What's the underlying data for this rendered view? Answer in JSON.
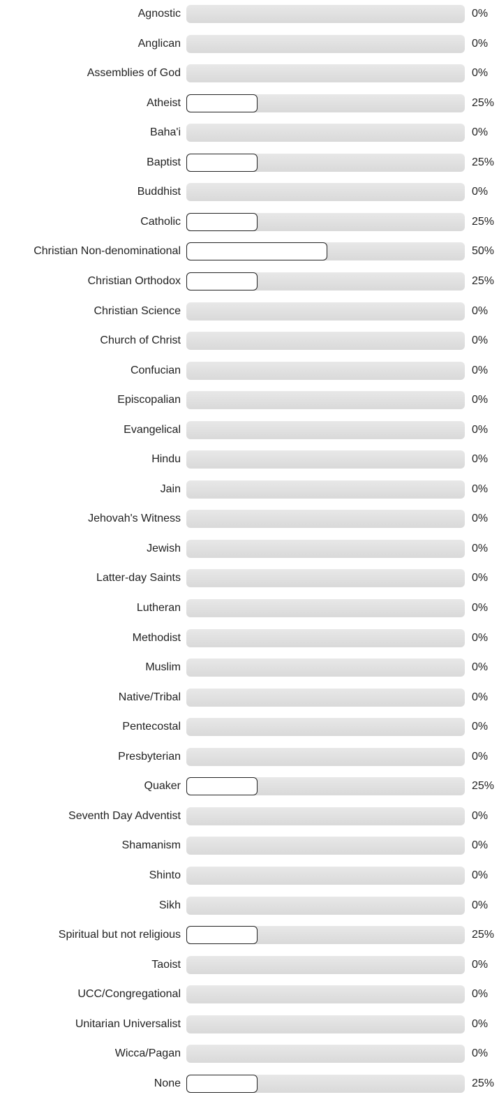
{
  "chart_data": {
    "type": "bar",
    "orientation": "horizontal",
    "value_format": "percent",
    "xlim": [
      0,
      100
    ],
    "categories": [
      "Agnostic",
      "Anglican",
      "Assemblies of God",
      "Atheist",
      "Baha'i",
      "Baptist",
      "Buddhist",
      "Catholic",
      "Christian Non-denominational",
      "Christian Orthodox",
      "Christian Science",
      "Church of Christ",
      "Confucian",
      "Episcopalian",
      "Evangelical",
      "Hindu",
      "Jain",
      "Jehovah's Witness",
      "Jewish",
      "Latter-day Saints",
      "Lutheran",
      "Methodist",
      "Muslim",
      "Native/Tribal",
      "Pentecostal",
      "Presbyterian",
      "Quaker",
      "Seventh Day Adventist",
      "Shamanism",
      "Shinto",
      "Sikh",
      "Spiritual but not religious",
      "Taoist",
      "UCC/Congregational",
      "Unitarian Universalist",
      "Wicca/Pagan",
      "None"
    ],
    "values": [
      0,
      0,
      0,
      25,
      0,
      25,
      0,
      25,
      50,
      25,
      0,
      0,
      0,
      0,
      0,
      0,
      0,
      0,
      0,
      0,
      0,
      0,
      0,
      0,
      0,
      0,
      25,
      0,
      0,
      0,
      0,
      25,
      0,
      0,
      0,
      0,
      25
    ],
    "value_labels": [
      "0%",
      "0%",
      "0%",
      "25%",
      "0%",
      "25%",
      "0%",
      "25%",
      "50%",
      "25%",
      "0%",
      "0%",
      "0%",
      "0%",
      "0%",
      "0%",
      "0%",
      "0%",
      "0%",
      "0%",
      "0%",
      "0%",
      "0%",
      "0%",
      "0%",
      "0%",
      "25%",
      "0%",
      "0%",
      "0%",
      "0%",
      "25%",
      "0%",
      "0%",
      "0%",
      "0%",
      "25%"
    ],
    "colors": {
      "track": "#dedede",
      "fill": "#ffffff",
      "fill_border": "#222222",
      "text": "#222222"
    }
  }
}
